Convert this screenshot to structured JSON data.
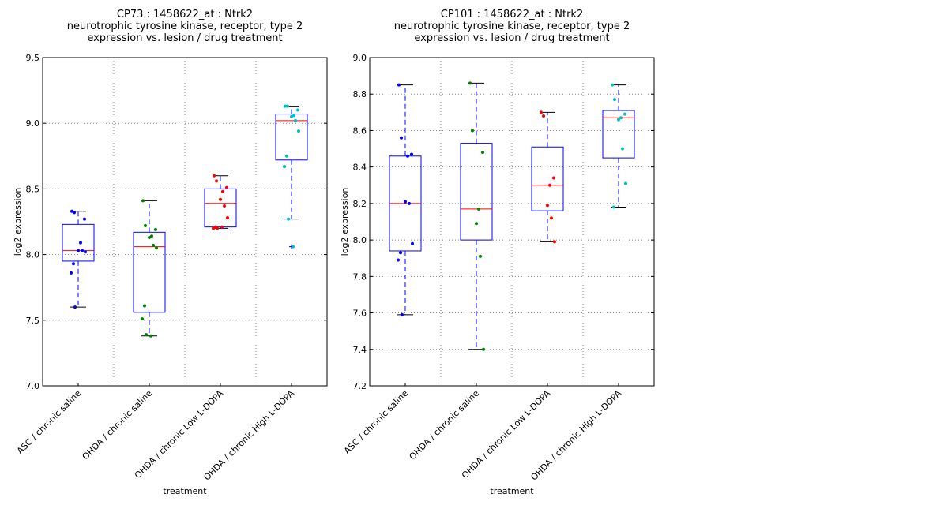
{
  "chart_data": [
    {
      "type": "box",
      "title": [
        "CP73 : 1458622_at : Ntrk2",
        "neurotrophic tyrosine kinase, receptor, type 2",
        "expression vs. lesion / drug treatment"
      ],
      "xlabel": "treatment",
      "ylabel": "log2 expression",
      "ylim": [
        7.0,
        9.5
      ],
      "yticks": [
        7.0,
        7.5,
        8.0,
        8.5,
        9.0,
        9.5
      ],
      "ytick_labels": [
        "7.0",
        "7.5",
        "8.0",
        "8.5",
        "9.0",
        "9.5"
      ],
      "grid": true,
      "categories": [
        "ASC / chronic saline",
        "OHDA / chronic saline",
        "OHDA / chronic Low L-DOPA",
        "OHDA / chronic High L-DOPA"
      ],
      "point_colors": [
        "#0000ff",
        "#008000",
        "#ff0000",
        "#00bfbf"
      ],
      "boxes": [
        {
          "whislo": 7.6,
          "q1": 7.95,
          "med": 8.03,
          "q3": 8.23,
          "whishi": 8.33,
          "fliers": [],
          "points": [
            8.33,
            8.32,
            8.27,
            8.09,
            8.03,
            8.03,
            8.02,
            7.93,
            7.86,
            7.6
          ]
        },
        {
          "whislo": 7.38,
          "q1": 7.56,
          "med": 8.06,
          "q3": 8.17,
          "whishi": 8.41,
          "fliers": [],
          "points": [
            8.41,
            8.22,
            8.19,
            8.14,
            8.13,
            8.07,
            8.05,
            7.61,
            7.51,
            7.39,
            7.38
          ]
        },
        {
          "whislo": 8.2,
          "q1": 8.21,
          "med": 8.39,
          "q3": 8.5,
          "whishi": 8.6,
          "fliers": [],
          "points": [
            8.6,
            8.56,
            8.51,
            8.48,
            8.42,
            8.37,
            8.28,
            8.21,
            8.2,
            8.2,
            8.21
          ]
        },
        {
          "whislo": 8.27,
          "q1": 8.72,
          "med": 9.02,
          "q3": 9.07,
          "whishi": 9.13,
          "fliers": [
            8.06
          ],
          "points": [
            9.13,
            9.13,
            9.1,
            9.06,
            9.05,
            9.02,
            8.94,
            8.75,
            8.67,
            8.27,
            8.06
          ]
        }
      ]
    },
    {
      "type": "box",
      "title": [
        "CP101 : 1458622_at : Ntrk2",
        "neurotrophic tyrosine kinase, receptor, type 2",
        "expression vs. lesion / drug treatment"
      ],
      "xlabel": "treatment",
      "ylabel": "log2 expression",
      "ylim": [
        7.2,
        9.0
      ],
      "yticks": [
        7.2,
        7.4,
        7.6,
        7.8,
        8.0,
        8.2,
        8.4,
        8.6,
        8.8,
        9.0
      ],
      "ytick_labels": [
        "7.2",
        "7.4",
        "7.6",
        "7.8",
        "8.0",
        "8.2",
        "8.4",
        "8.6",
        "8.8",
        "9.0"
      ],
      "grid": true,
      "categories": [
        "ASC / chronic saline",
        "OHDA / chronic saline",
        "OHDA / chronic Low L-DOPA",
        "OHDA / chronic High L-DOPA"
      ],
      "point_colors": [
        "#0000ff",
        "#008000",
        "#ff0000",
        "#00bfbf"
      ],
      "boxes": [
        {
          "whislo": 7.59,
          "q1": 7.94,
          "med": 8.2,
          "q3": 8.46,
          "whishi": 8.85,
          "fliers": [],
          "points": [
            8.85,
            8.56,
            8.47,
            8.46,
            8.21,
            8.2,
            7.98,
            7.93,
            7.89,
            7.59
          ]
        },
        {
          "whislo": 7.4,
          "q1": 8.0,
          "med": 8.17,
          "q3": 8.53,
          "whishi": 8.86,
          "fliers": [],
          "points": [
            8.86,
            8.6,
            8.48,
            8.17,
            8.09,
            7.91,
            7.4
          ]
        },
        {
          "whislo": 7.99,
          "q1": 8.16,
          "med": 8.3,
          "q3": 8.51,
          "whishi": 8.7,
          "fliers": [],
          "points": [
            8.7,
            8.68,
            8.34,
            8.3,
            8.19,
            8.12,
            7.99
          ]
        },
        {
          "whislo": 8.18,
          "q1": 8.45,
          "med": 8.67,
          "q3": 8.71,
          "whishi": 8.85,
          "fliers": [],
          "points": [
            8.85,
            8.77,
            8.69,
            8.67,
            8.66,
            8.5,
            8.31,
            8.18
          ]
        }
      ]
    }
  ]
}
